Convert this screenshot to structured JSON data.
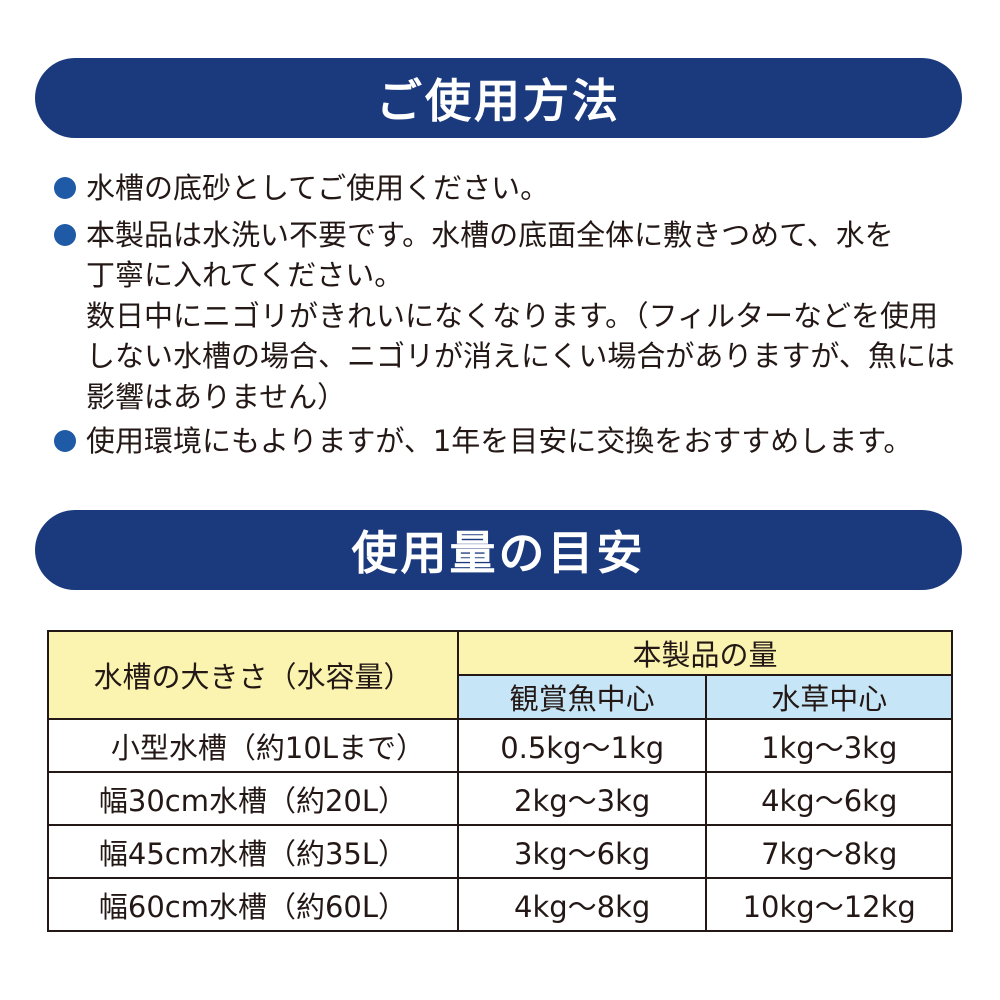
{
  "usage": {
    "title": "ご使用方法",
    "bullets": [
      {
        "lines": [
          "水槽の底砂としてご使用ください。"
        ]
      },
      {
        "lines": [
          "本製品は水洗い不要です。水槽の底面全体に敷きつめて、水を",
          "丁寧に入れてください。",
          "数日中にニゴリがきれいになくなります。（フィルターなどを使用",
          "しない水槽の場合、ニゴリが消えにくい場合がありますが、魚には",
          "影響はありません）"
        ]
      },
      {
        "lines": [
          "使用環境にもよりますが、1年を目安に交換をおすすめします。"
        ]
      }
    ]
  },
  "amount": {
    "title": "使用量の目安",
    "table": {
      "col1_header": "水槽の大きさ（水容量）",
      "group_header": "本製品の量",
      "sub_headers": [
        "観賞魚中心",
        "水草中心"
      ],
      "rows": [
        [
          "小型水槽（約10Lまで）",
          "0.5kg〜1kg",
          "1kg〜3kg"
        ],
        [
          "幅30cm水槽（約20L）",
          "2kg〜3kg",
          "4kg〜6kg"
        ],
        [
          "幅45cm水槽（約35L）",
          "3kg〜6kg",
          "7kg〜8kg"
        ],
        [
          "幅60cm水槽（約60L）",
          "4kg〜8kg",
          "10kg〜12kg"
        ]
      ]
    }
  },
  "colors": {
    "banner": "#1b3a7e",
    "bullet": "#1f5aa6",
    "header_yellow": "#faf4b0",
    "header_blue": "#c6e6f7"
  }
}
